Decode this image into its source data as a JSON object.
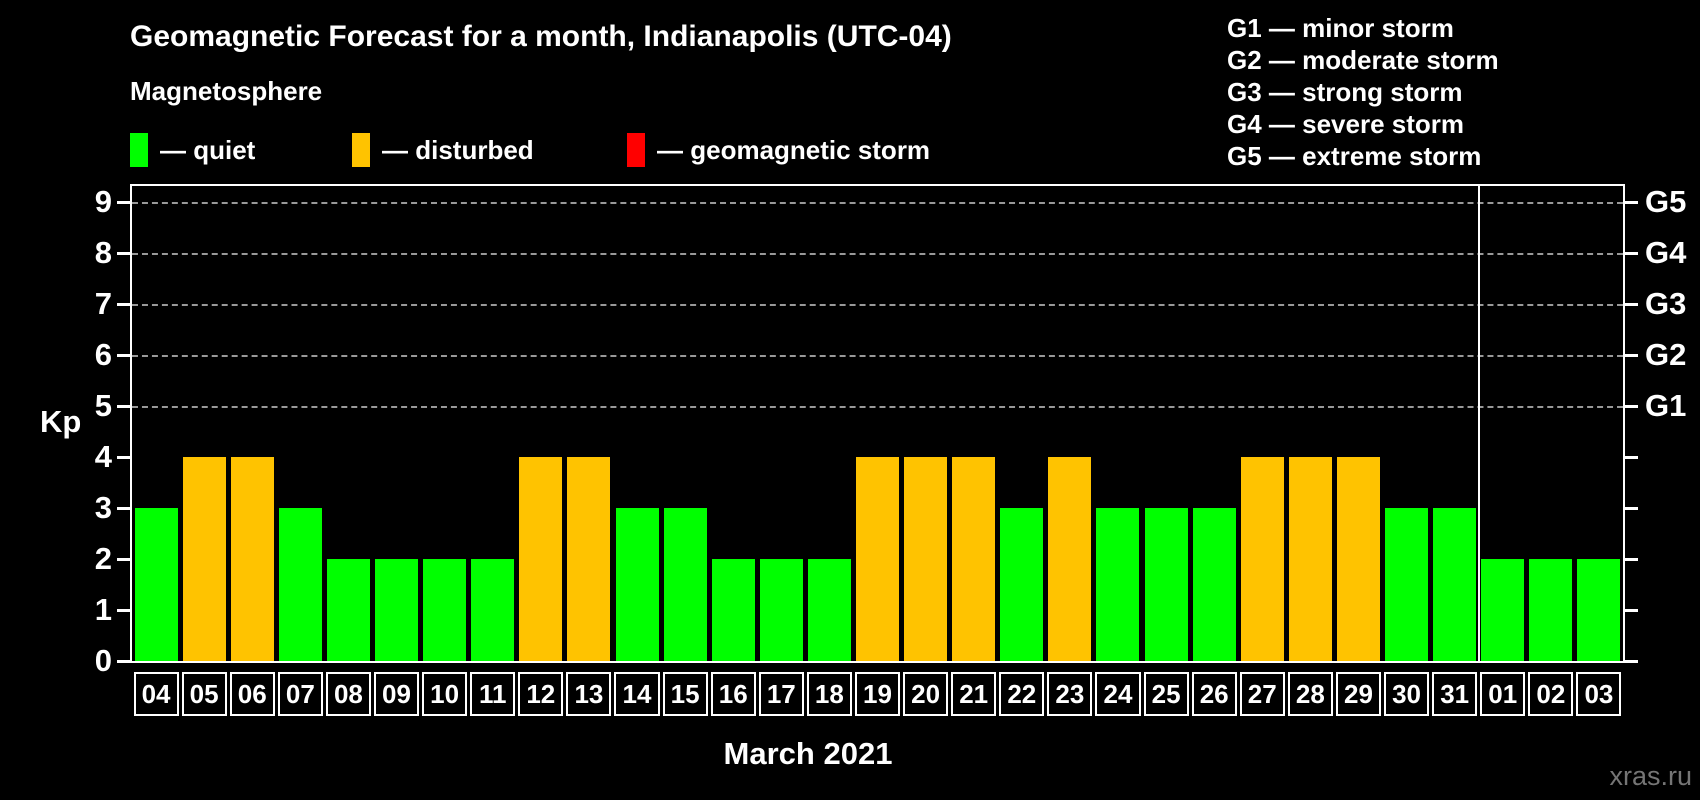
{
  "title": "Geomagnetic Forecast for a month, Indianapolis (UTC-04)",
  "legend": {
    "heading": "Magnetosphere",
    "items": [
      {
        "key": "quiet",
        "label": "— quiet",
        "color": "#00ff00"
      },
      {
        "key": "disturbed",
        "label": "— disturbed",
        "color": "#ffc300"
      },
      {
        "key": "storm",
        "label": "— geomagnetic storm",
        "color": "#ff0000"
      }
    ]
  },
  "g_scale_legend": [
    "G1 — minor storm",
    "G2 — moderate storm",
    "G3 — strong storm",
    "G4 — severe storm",
    "G5 — extreme storm"
  ],
  "axes": {
    "y_label": "Kp",
    "x_label": "March 2021",
    "y_ticks": [
      0,
      1,
      2,
      3,
      4,
      5,
      6,
      7,
      8,
      9
    ],
    "right_ticks": [
      {
        "kp": 5,
        "label": "G1"
      },
      {
        "kp": 6,
        "label": "G2"
      },
      {
        "kp": 7,
        "label": "G3"
      },
      {
        "kp": 8,
        "label": "G4"
      },
      {
        "kp": 9,
        "label": "G5"
      }
    ]
  },
  "watermark": "xras.ru",
  "chart_data": {
    "type": "bar",
    "title": "Geomagnetic Forecast for a month, Indianapolis (UTC-04)",
    "xlabel": "March 2021",
    "ylabel": "Kp",
    "ylim": [
      0,
      9.35
    ],
    "grid": "horizontal-dashed",
    "gridlines_at": [
      5,
      6,
      7,
      8,
      9
    ],
    "legend_position": "top-left",
    "categories": [
      "04",
      "05",
      "06",
      "07",
      "08",
      "09",
      "10",
      "11",
      "12",
      "13",
      "14",
      "15",
      "16",
      "17",
      "18",
      "19",
      "20",
      "21",
      "22",
      "23",
      "24",
      "25",
      "26",
      "27",
      "28",
      "29",
      "30",
      "31",
      "01",
      "02",
      "03"
    ],
    "values": [
      3,
      4,
      4,
      3,
      2,
      2,
      2,
      2,
      4,
      4,
      3,
      3,
      2,
      2,
      2,
      4,
      4,
      4,
      3,
      4,
      3,
      3,
      3,
      4,
      4,
      4,
      3,
      3,
      2,
      2,
      2
    ],
    "statuses": [
      "quiet",
      "disturbed",
      "disturbed",
      "quiet",
      "quiet",
      "quiet",
      "quiet",
      "quiet",
      "disturbed",
      "disturbed",
      "quiet",
      "quiet",
      "quiet",
      "quiet",
      "quiet",
      "disturbed",
      "disturbed",
      "disturbed",
      "quiet",
      "disturbed",
      "quiet",
      "quiet",
      "quiet",
      "disturbed",
      "disturbed",
      "disturbed",
      "quiet",
      "quiet",
      "quiet",
      "quiet",
      "quiet"
    ],
    "status_colors": {
      "quiet": "#00ff00",
      "disturbed": "#ffc300",
      "storm": "#ff0000"
    },
    "month_boundary_after_index": 27
  }
}
